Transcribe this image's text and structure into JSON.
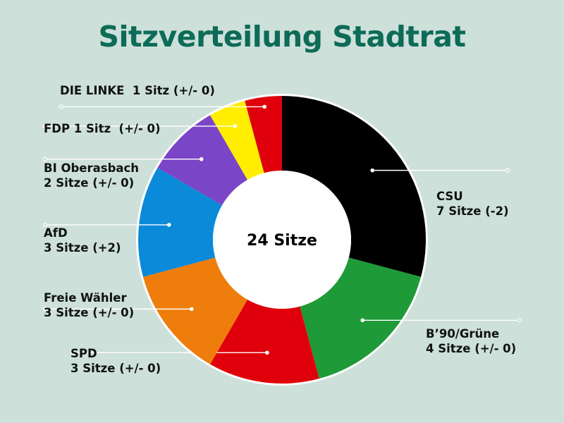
{
  "title": "Sitzverteilung Stadtrat",
  "chart_data": {
    "type": "pie",
    "title": "Sitzverteilung Stadtrat",
    "center_label": "24 Sitze",
    "total": 24,
    "slices": [
      {
        "party": "CSU",
        "value": 7,
        "color": "#000000",
        "label_lines": [
          "CSU",
          "7 Sitze (-2)"
        ]
      },
      {
        "party": "B’90/Grüne",
        "value": 4,
        "color": "#1f9a38",
        "label_lines": [
          "B’90/Grüne",
          "4 Sitze (+/- 0)"
        ]
      },
      {
        "party": "SPD",
        "value": 3,
        "color": "#e0000b",
        "label_lines": [
          "SPD",
          "3 Sitze (+/- 0)"
        ]
      },
      {
        "party": "Freie Wähler",
        "value": 3,
        "color": "#ef7d0c",
        "label_lines": [
          "Freie Wähler",
          "3 Sitze (+/- 0)"
        ]
      },
      {
        "party": "AfD",
        "value": 3,
        "color": "#0a8ad8",
        "label_lines": [
          "AfD",
          "3 Sitze (+2)"
        ]
      },
      {
        "party": "BI Oberasbach",
        "value": 2,
        "color": "#7a45c6",
        "label_lines": [
          "BI Oberasbach",
          "2 Sitze (+/- 0)"
        ]
      },
      {
        "party": "FDP",
        "value": 1,
        "color": "#ffee00",
        "label_lines": [
          "FDP 1 Sitz  (+/- 0)"
        ]
      },
      {
        "party": "DIE LINKE",
        "value": 1,
        "color": "#e0000b",
        "label_lines": [
          "DIE LINKE  1 Sitz (+/- 0)"
        ]
      }
    ]
  }
}
